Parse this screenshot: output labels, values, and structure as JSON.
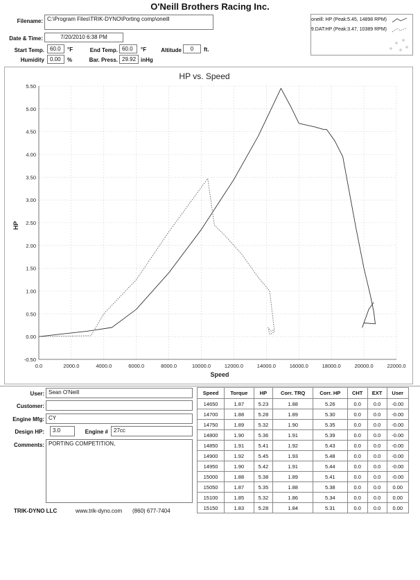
{
  "header": {
    "title": "O'Neill Brothers Racing Inc.",
    "filename_label": "Filename:",
    "filename": "C:\\Program Files\\TRIK-DYNO\\Porting comp\\oneill",
    "datetime_label": "Date & Time:",
    "datetime": "7/20/2010 6:38 PM",
    "start_temp_label": "Start Temp.",
    "start_temp": "60.0",
    "end_temp_label": "End Temp.",
    "end_temp": "60.0",
    "temp_unit": "°F",
    "altitude_label": "Altitude",
    "altitude": "0",
    "altitude_unit": "ft.",
    "humidity_label": "Humidity",
    "humidity": "0.00",
    "humidity_unit": "%",
    "bar_press_label": "Bar. Press.",
    "bar_press": "29.92",
    "bar_press_unit": "inHg"
  },
  "legend": {
    "entries": [
      "oneill: HP (Peak:5.45, 14898 RPM)",
      "9.DAT:HP (Peak:3.47, 10389 RPM)"
    ]
  },
  "chart_data": {
    "type": "line",
    "title": "HP vs. Speed",
    "xlabel": "Speed",
    "ylabel": "HP",
    "xlim": [
      0,
      22000
    ],
    "ylim": [
      -0.5,
      5.5
    ],
    "x_ticks": [
      "0.0",
      "2000.0",
      "4000.0",
      "6000.0",
      "8000.0",
      "10000.0",
      "12000.0",
      "14000.0",
      "16000.0",
      "18000.0",
      "20000.0",
      "22000.0"
    ],
    "y_ticks": [
      "-0.50",
      "0.00",
      "0.50",
      "1.00",
      "1.50",
      "2.00",
      "2.50",
      "3.00",
      "3.50",
      "4.00",
      "4.50",
      "5.00",
      "5.50"
    ],
    "grid": true,
    "legend_position": "top-right",
    "series": [
      {
        "name": "oneill: HP (Peak:5.45, 14898 RPM)",
        "style": "solid",
        "x": [
          0,
          1500,
          3000,
          4500,
          6000,
          8000,
          10000,
          12000,
          13500,
          14898,
          15500,
          16000,
          17000,
          17500,
          17700,
          18200,
          18700,
          19500,
          20000,
          20400,
          20600,
          20700,
          20000,
          19900,
          20300,
          20600
        ],
        "y": [
          0.0,
          0.06,
          0.12,
          0.2,
          0.6,
          1.4,
          2.35,
          3.45,
          4.4,
          5.45,
          5.05,
          4.68,
          4.6,
          4.55,
          4.55,
          4.3,
          3.95,
          2.4,
          1.5,
          0.9,
          0.55,
          0.28,
          0.3,
          0.2,
          0.6,
          0.75
        ]
      },
      {
        "name": "9.DAT:HP (Peak:3.47, 10389 RPM)",
        "style": "dotted",
        "x": [
          0,
          3200,
          4000,
          6000,
          8000,
          10389,
          10800,
          11500,
          12500,
          13500,
          14200,
          14500,
          14200,
          14100,
          14300,
          14500
        ],
        "y": [
          0.0,
          0.02,
          0.5,
          1.25,
          2.3,
          3.47,
          2.45,
          2.2,
          1.8,
          1.3,
          1.0,
          0.1,
          0.05,
          0.2,
          0.12,
          0.15
        ]
      }
    ]
  },
  "info": {
    "user_label": "User:",
    "user": "Sean O'Neill",
    "customer_label": "Customer:",
    "customer": "",
    "engine_mfg_label": "Engine Mfg:",
    "engine_mfg": "CY",
    "design_hp_label": "Design HP:",
    "design_hp": "3.0",
    "engine_num_label": "Engine #",
    "engine_num": "27cc",
    "comments_label": "Comments:",
    "comments": "PORTING COMPETITION,"
  },
  "results_table": {
    "headers": [
      "Speed",
      "Torque",
      "HP",
      "Corr. TRQ",
      "Corr. HP",
      "CHT",
      "EXT",
      "User"
    ],
    "rows": [
      [
        "14650",
        "1.87",
        "5.23",
        "1.88",
        "5.26",
        "0.0",
        "0.0",
        "-0.00"
      ],
      [
        "14700",
        "1.88",
        "5.28",
        "1.89",
        "5.30",
        "0.0",
        "0.0",
        "-0.00"
      ],
      [
        "14750",
        "1.89",
        "5.32",
        "1.90",
        "5.35",
        "0.0",
        "0.0",
        "-0.00"
      ],
      [
        "14800",
        "1.90",
        "5.36",
        "1.91",
        "5.39",
        "0.0",
        "0.0",
        "-0.00"
      ],
      [
        "14850",
        "1.91",
        "5.41",
        "1.92",
        "5.43",
        "0.0",
        "0.0",
        "-0.00"
      ],
      [
        "14900",
        "1.92",
        "5.45",
        "1.93",
        "5.48",
        "0.0",
        "0.0",
        "-0.00"
      ],
      [
        "14950",
        "1.90",
        "5.42",
        "1.91",
        "5.44",
        "0.0",
        "0.0",
        "-0.00"
      ],
      [
        "15000",
        "1.88",
        "5.38",
        "1.89",
        "5.41",
        "0.0",
        "0.0",
        "-0.00"
      ],
      [
        "15050",
        "1.87",
        "5.35",
        "1.88",
        "5.38",
        "0.0",
        "0.0",
        "0.00"
      ],
      [
        "15100",
        "1.85",
        "5.32",
        "1.86",
        "5.34",
        "0.0",
        "0.0",
        "0.00"
      ],
      [
        "15150",
        "1.83",
        "5.28",
        "1.84",
        "5.31",
        "0.0",
        "0.0",
        "0.00"
      ]
    ]
  },
  "footer": {
    "company": "TRIK-DYNO LLC",
    "website": "www.trik-dyno.com",
    "phone": "(860) 677-7404"
  }
}
